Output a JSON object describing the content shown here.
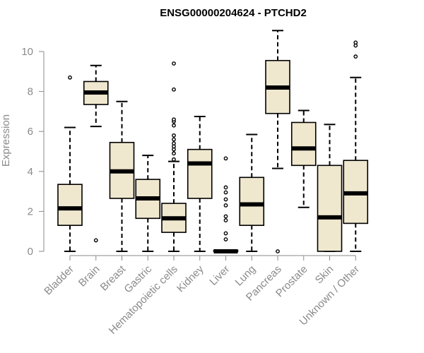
{
  "chart_data": {
    "type": "boxplot",
    "title": "ENSG00000204624 - PTCHD2",
    "xlabel": "",
    "ylabel": "Expression",
    "ylim": [
      0,
      11.1
    ],
    "yticks": [
      0,
      2,
      4,
      6,
      8,
      10
    ],
    "grid": false,
    "colors": {
      "box_fill": "#efe8cf",
      "box_stroke": "#000000",
      "axis": "#8a8a8a"
    },
    "categories": [
      "Bladder",
      "Brain",
      "Breast",
      "Gastric",
      "Hematopoietic cells",
      "Kidney",
      "Liver",
      "Lung",
      "Pancreas",
      "Prostate",
      "Skin",
      "Unknown / Other"
    ],
    "boxes": [
      {
        "category": "Bladder",
        "min": 0.0,
        "q1": 1.3,
        "median": 2.15,
        "q3": 3.35,
        "max": 6.2,
        "outliers": [
          8.7
        ]
      },
      {
        "category": "Brain",
        "min": 6.25,
        "q1": 7.35,
        "median": 7.95,
        "q3": 8.5,
        "max": 9.3,
        "outliers": [
          0.55
        ]
      },
      {
        "category": "Breast",
        "min": 0.0,
        "q1": 2.65,
        "median": 4.0,
        "q3": 5.45,
        "max": 7.5,
        "outliers": []
      },
      {
        "category": "Gastric",
        "min": 0.0,
        "q1": 1.65,
        "median": 2.65,
        "q3": 3.6,
        "max": 4.8,
        "outliers": []
      },
      {
        "category": "Hematopoietic cells",
        "min": 0.0,
        "q1": 0.95,
        "median": 1.65,
        "q3": 2.4,
        "max": 4.5,
        "outliers": [
          4.6,
          4.9,
          5.1,
          5.25,
          5.4,
          5.6,
          5.8,
          6.3,
          6.5,
          6.6,
          8.1,
          9.4
        ]
      },
      {
        "category": "Kidney",
        "min": 0.0,
        "q1": 2.65,
        "median": 4.4,
        "q3": 5.1,
        "max": 6.75,
        "outliers": []
      },
      {
        "category": "Liver",
        "min": 0.0,
        "q1": 0.0,
        "median": 0.0,
        "q3": 0.05,
        "max": 0.05,
        "outliers": [
          0.6,
          0.9,
          1.55,
          1.75,
          2.3,
          2.6,
          2.95,
          3.2,
          4.65
        ]
      },
      {
        "category": "Lung",
        "min": 0.0,
        "q1": 1.3,
        "median": 2.35,
        "q3": 3.7,
        "max": 5.85,
        "outliers": []
      },
      {
        "category": "Pancreas",
        "min": 4.15,
        "q1": 6.9,
        "median": 8.2,
        "q3": 9.55,
        "max": 11.05,
        "outliers": [
          0.0
        ]
      },
      {
        "category": "Prostate",
        "min": 2.2,
        "q1": 4.3,
        "median": 5.15,
        "q3": 6.45,
        "max": 7.05,
        "outliers": []
      },
      {
        "category": "Skin",
        "min": 0.0,
        "q1": 0.0,
        "median": 1.7,
        "q3": 4.3,
        "max": 6.35,
        "outliers": []
      },
      {
        "category": "Unknown / Other",
        "min": 0.0,
        "q1": 1.4,
        "median": 2.9,
        "q3": 4.55,
        "max": 8.7,
        "outliers": [
          9.75,
          10.3,
          10.45
        ]
      }
    ]
  }
}
